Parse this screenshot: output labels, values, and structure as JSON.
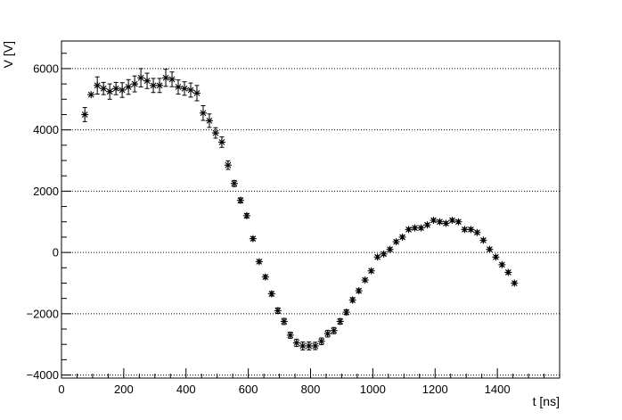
{
  "chart_data": {
    "type": "scatter",
    "xlabel": "t [ns]",
    "ylabel": "V [V]",
    "xlim": [
      0,
      1600
    ],
    "ylim": [
      -4100,
      6900
    ],
    "xticks": [
      0,
      200,
      400,
      600,
      800,
      1000,
      1200,
      1400
    ],
    "yticks": [
      -4000,
      -2000,
      0,
      2000,
      4000,
      6000
    ],
    "xtick_labels": [
      "0",
      "200",
      "400",
      "600",
      "800",
      "1000",
      "1200",
      "1400"
    ],
    "ytick_labels": [
      "−4000",
      "−2000",
      "0",
      "2000",
      "4000",
      "6000"
    ],
    "grid": "horizontal-dotted",
    "marker": "asterisk",
    "color": "#000000",
    "series": [
      {
        "x": [
          75,
          95,
          115,
          135,
          155,
          175,
          195,
          215,
          235,
          255,
          275,
          295,
          315,
          335,
          355,
          375,
          395,
          415,
          435,
          455,
          475,
          495,
          515,
          535,
          555,
          575,
          595,
          615,
          635,
          655,
          675,
          695,
          715,
          735,
          755,
          775,
          795,
          815,
          835,
          855,
          875,
          895,
          915,
          935,
          955,
          975,
          995,
          1015,
          1035,
          1055,
          1075,
          1095,
          1115,
          1135,
          1155,
          1175,
          1195,
          1215,
          1235,
          1255,
          1275,
          1295,
          1315,
          1335,
          1355,
          1375,
          1395,
          1415,
          1435,
          1455
        ],
        "y": [
          4500,
          5150,
          5450,
          5350,
          5250,
          5350,
          5300,
          5400,
          5500,
          5700,
          5600,
          5450,
          5450,
          5700,
          5650,
          5400,
          5350,
          5300,
          5200,
          4550,
          4300,
          3900,
          3600,
          2850,
          2250,
          1700,
          1200,
          450,
          -300,
          -800,
          -1350,
          -1900,
          -2250,
          -2700,
          -2950,
          -3050,
          -3050,
          -3050,
          -2900,
          -2650,
          -2550,
          -2250,
          -1950,
          -1550,
          -1250,
          -900,
          -600,
          -150,
          -50,
          100,
          350,
          500,
          750,
          800,
          800,
          900,
          1050,
          1000,
          950,
          1050,
          1000,
          750,
          750,
          650,
          400,
          100,
          -150,
          -400,
          -650,
          -1000
        ],
        "err": [
          230,
          0,
          280,
          200,
          250,
          200,
          240,
          240,
          260,
          300,
          250,
          230,
          230,
          280,
          240,
          230,
          220,
          230,
          250,
          240,
          220,
          170,
          170,
          140,
          100,
          80,
          70,
          60,
          50,
          60,
          70,
          90,
          100,
          100,
          120,
          130,
          130,
          120,
          110,
          110,
          100,
          90,
          80,
          70,
          60,
          50,
          50,
          50,
          50,
          50,
          50,
          50,
          50,
          50,
          50,
          50,
          50,
          50,
          50,
          50,
          50,
          50,
          50,
          50,
          50,
          50,
          50,
          50,
          50,
          50
        ]
      }
    ]
  }
}
